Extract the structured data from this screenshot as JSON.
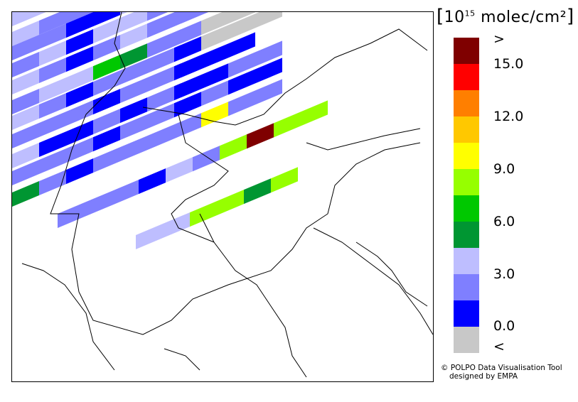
{
  "legend": {
    "title_open": "[",
    "title_base": "10",
    "title_exp": "15",
    "title_unit": " molec/cm²",
    "title_close": "]",
    "over_label": ">",
    "under_label": "<",
    "ticks": [
      "15.0",
      "12.0",
      "9.0",
      "6.0",
      "3.0",
      "0.0"
    ],
    "colors": [
      "#7f0000",
      "#ff0000",
      "#ff7f00",
      "#ffc800",
      "#ffff00",
      "#96ff00",
      "#00c800",
      "#009632",
      "#bebeff",
      "#7f7fff",
      "#0000ff",
      "#c8c8c8"
    ]
  },
  "credit": {
    "line1": "© POLPO Data Visualisation Tool",
    "line2": "designed by EMPA"
  }
}
